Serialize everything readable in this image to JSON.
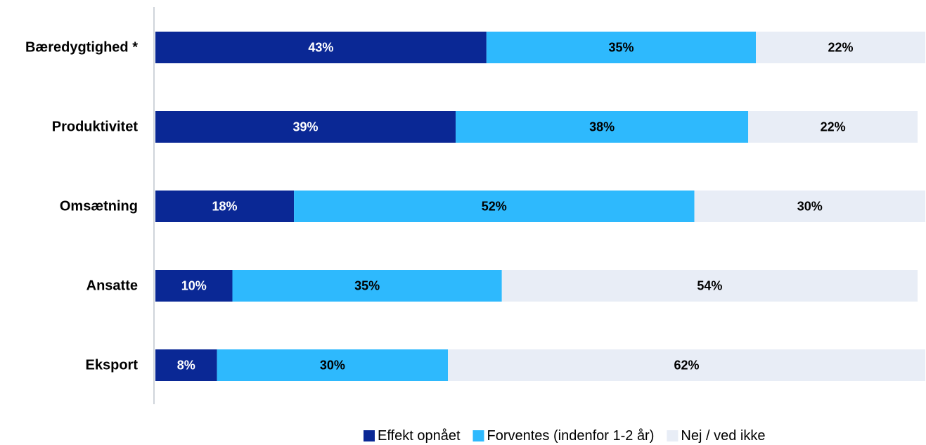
{
  "chart_data": {
    "type": "bar",
    "orientation": "horizontal",
    "stacked": true,
    "categories": [
      "Bæredygtighed *",
      "Produktivitet",
      "Omsætning",
      "Ansatte",
      "Eksport"
    ],
    "series": [
      {
        "name": "Effekt opnået",
        "color": "#0a2895",
        "label_color": "#ffffff",
        "values": [
          43,
          39,
          18,
          10,
          8
        ]
      },
      {
        "name": "Forventes (indenfor 1-2 år)",
        "color": "#2eb9fd",
        "label_color": "#000000",
        "values": [
          35,
          38,
          52,
          35,
          30
        ]
      },
      {
        "name": "Nej / ved ikke",
        "color": "#e8edf6",
        "label_color": "#000000",
        "values": [
          22,
          22,
          30,
          54,
          62
        ]
      }
    ],
    "value_suffix": "%",
    "xlim": [
      0,
      100
    ],
    "grid": false,
    "legend_position": "bottom-right",
    "title": "",
    "xlabel": "",
    "ylabel": ""
  }
}
